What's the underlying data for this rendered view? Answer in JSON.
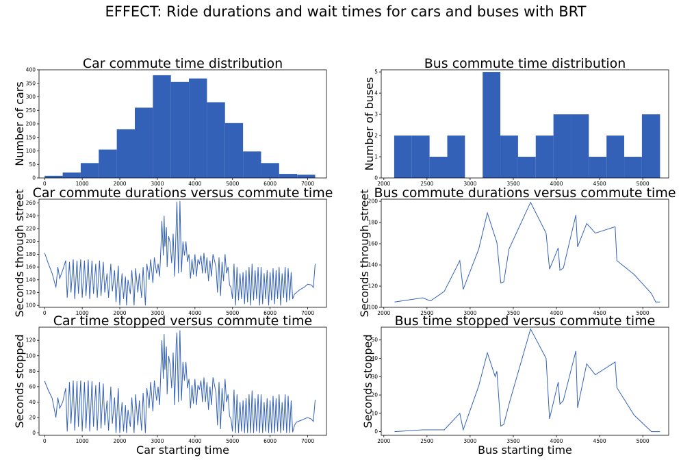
{
  "figure": {
    "title": "EFFECT: Ride durations and wait times for cars and buses with BRT",
    "colors": {
      "series": "#3361b8",
      "axis": "#000000"
    }
  },
  "chart_data": [
    {
      "id": "car-hist",
      "type": "bar",
      "title": "Car commute time distribution",
      "xlabel": "",
      "ylabel": "Number of cars",
      "xlim": [
        -150,
        7500
      ],
      "ylim": [
        0,
        400
      ],
      "xticks": [
        0,
        1000,
        2000,
        3000,
        4000,
        5000,
        6000,
        7000
      ],
      "yticks": [
        0,
        50,
        100,
        150,
        200,
        250,
        300,
        350,
        400
      ],
      "bin_edges": [
        0,
        480,
        960,
        1440,
        1920,
        2400,
        2880,
        3360,
        3840,
        4320,
        4800,
        5280,
        5760,
        6240,
        6720,
        7200
      ],
      "values": [
        8,
        20,
        55,
        105,
        180,
        260,
        380,
        355,
        368,
        280,
        203,
        98,
        55,
        15,
        12
      ]
    },
    {
      "id": "bus-hist",
      "type": "bar",
      "title": "Bus commute time distribution",
      "xlabel": "",
      "ylabel": "Number of buses",
      "xlim": [
        1970,
        5300
      ],
      "ylim": [
        0,
        5.1
      ],
      "xticks": [
        2000,
        2500,
        3000,
        3500,
        4000,
        4500,
        5000
      ],
      "yticks": [
        0,
        1,
        2,
        3,
        4,
        5
      ],
      "bin_edges": [
        2120,
        2325,
        2530,
        2735,
        2940,
        3145,
        3350,
        3555,
        3760,
        3965,
        4170,
        4375,
        4580,
        4785,
        4990,
        5200
      ],
      "values": [
        2,
        2,
        1,
        2,
        0,
        5,
        2,
        1,
        2,
        3,
        3,
        1,
        2,
        1,
        3
      ]
    },
    {
      "id": "car-duration",
      "type": "line",
      "title": "Car commute durations versus commute time",
      "xlabel": "",
      "ylabel": "Seconds through street",
      "xlim": [
        -150,
        7500
      ],
      "ylim": [
        97,
        266
      ],
      "xticks": [
        0,
        1000,
        2000,
        3000,
        4000,
        5000,
        6000,
        7000
      ],
      "yticks": [
        100,
        120,
        140,
        160,
        180,
        200,
        220,
        240,
        260
      ],
      "x": [
        0,
        100,
        200,
        300,
        350,
        400,
        480,
        560,
        600,
        660,
        700,
        760,
        800,
        860,
        900,
        960,
        1000,
        1060,
        1100,
        1160,
        1200,
        1260,
        1300,
        1360,
        1400,
        1460,
        1500,
        1560,
        1600,
        1660,
        1700,
        1760,
        1800,
        1860,
        1900,
        1960,
        2000,
        2060,
        2100,
        2150,
        2180,
        2220,
        2280,
        2320,
        2380,
        2420,
        2480,
        2520,
        2580,
        2620,
        2680,
        2720,
        2780,
        2820,
        2880,
        2920,
        2980,
        3020,
        3060,
        3100,
        3120,
        3160,
        3180,
        3200,
        3240,
        3260,
        3300,
        3340,
        3380,
        3420,
        3460,
        3500,
        3520,
        3560,
        3580,
        3600,
        3640,
        3680,
        3720,
        3760,
        3800,
        3840,
        3880,
        3920,
        3960,
        4000,
        4040,
        4080,
        4120,
        4160,
        4200,
        4240,
        4280,
        4320,
        4360,
        4400,
        4440,
        4480,
        4520,
        4560,
        4600,
        4640,
        4680,
        4720,
        4760,
        4800,
        4840,
        4880,
        4920,
        4960,
        5000,
        5040,
        5080,
        5120,
        5160,
        5200,
        5240,
        5280,
        5320,
        5360,
        5400,
        5440,
        5480,
        5520,
        5560,
        5600,
        5640,
        5680,
        5720,
        5760,
        5800,
        5840,
        5880,
        5920,
        5960,
        6000,
        6040,
        6080,
        6120,
        6160,
        6200,
        6240,
        6280,
        6320,
        6360,
        6400,
        6440,
        6480,
        6520,
        6560,
        6600,
        6650,
        6700,
        6800,
        6900,
        7000,
        7100,
        7150,
        7200
      ],
      "y": [
        182,
        165,
        150,
        128,
        160,
        142,
        155,
        170,
        112,
        168,
        120,
        172,
        110,
        170,
        118,
        172,
        112,
        170,
        115,
        172,
        110,
        170,
        118,
        165,
        112,
        170,
        115,
        168,
        120,
        150,
        112,
        165,
        122,
        155,
        105,
        162,
        100,
        150,
        110,
        145,
        100,
        140,
        118,
        155,
        100,
        158,
        120,
        150,
        112,
        160,
        100,
        165,
        140,
        172,
        135,
        175,
        150,
        165,
        145,
        198,
        232,
        178,
        240,
        192,
        222,
        160,
        208,
        198,
        166,
        212,
        145,
        225,
        262,
        150,
        200,
        263,
        152,
        200,
        178,
        200,
        168,
        180,
        142,
        172,
        148,
        180,
        145,
        172,
        165,
        178,
        150,
        182,
        150,
        175,
        138,
        170,
        145,
        180,
        170,
        160,
        120,
        175,
        115,
        168,
        138,
        180,
        150,
        160,
        132,
        128,
        110,
        165,
        100,
        160,
        108,
        150,
        110,
        152,
        102,
        155,
        105,
        160,
        100,
        165,
        108,
        155,
        110,
        160,
        100,
        160,
        102,
        150,
        110,
        155,
        100,
        152,
        108,
        158,
        102,
        155,
        110,
        160,
        100,
        150,
        112,
        160,
        105,
        158,
        108,
        152,
        110,
        118,
        120,
        125,
        128,
        133,
        132,
        128,
        165
      ]
    },
    {
      "id": "bus-duration",
      "type": "line",
      "title": "Bus commute durations versus commute time",
      "xlabel": "",
      "ylabel": "Seconds through street",
      "xlim": [
        1970,
        5300
      ],
      "ylim": [
        100,
        202
      ],
      "xticks": [
        2000,
        2500,
        3000,
        3500,
        4000,
        4500,
        5000
      ],
      "yticks": [
        100,
        120,
        140,
        160,
        180,
        200
      ],
      "x": [
        2125,
        2450,
        2540,
        2700,
        2880,
        2920,
        3100,
        3200,
        3290,
        3310,
        3355,
        3390,
        3450,
        3700,
        3880,
        3920,
        4020,
        4040,
        4080,
        4225,
        4245,
        4350,
        4450,
        4680,
        4700,
        4900,
        5100,
        5150,
        5200
      ],
      "y": [
        105,
        109,
        106,
        115,
        144,
        117,
        155,
        189,
        166,
        161,
        123,
        124,
        155,
        199,
        170,
        136,
        156,
        135,
        137,
        187,
        157,
        179,
        170,
        176,
        144,
        131,
        113,
        105,
        105
      ]
    },
    {
      "id": "car-stopped",
      "type": "line",
      "title": "Car time stopped versus commute time",
      "xlabel": "Car starting time",
      "ylabel": "Seconds stopped",
      "xlim": [
        -150,
        7500
      ],
      "ylim": [
        -3,
        137
      ],
      "xticks": [
        0,
        1000,
        2000,
        3000,
        4000,
        5000,
        6000,
        7000
      ],
      "yticks": [
        0,
        20,
        40,
        60,
        80,
        100,
        120
      ],
      "x": [
        0,
        100,
        200,
        300,
        350,
        400,
        480,
        560,
        600,
        660,
        700,
        760,
        800,
        860,
        900,
        960,
        1000,
        1060,
        1100,
        1160,
        1200,
        1260,
        1300,
        1360,
        1400,
        1460,
        1500,
        1560,
        1600,
        1660,
        1700,
        1760,
        1800,
        1860,
        1900,
        1960,
        2000,
        2060,
        2100,
        2150,
        2180,
        2220,
        2280,
        2320,
        2380,
        2420,
        2480,
        2520,
        2580,
        2620,
        2680,
        2720,
        2780,
        2820,
        2880,
        2920,
        2980,
        3020,
        3060,
        3100,
        3120,
        3160,
        3180,
        3200,
        3240,
        3260,
        3300,
        3340,
        3380,
        3420,
        3460,
        3500,
        3520,
        3560,
        3580,
        3600,
        3640,
        3680,
        3720,
        3760,
        3800,
        3840,
        3880,
        3920,
        3960,
        4000,
        4040,
        4080,
        4120,
        4160,
        4200,
        4240,
        4280,
        4320,
        4360,
        4400,
        4440,
        4480,
        4520,
        4560,
        4600,
        4640,
        4680,
        4720,
        4760,
        4800,
        4840,
        4880,
        4920,
        4960,
        5000,
        5040,
        5080,
        5120,
        5160,
        5200,
        5240,
        5280,
        5320,
        5360,
        5400,
        5440,
        5480,
        5520,
        5560,
        5600,
        5640,
        5680,
        5720,
        5760,
        5800,
        5840,
        5880,
        5920,
        5960,
        6000,
        6040,
        6080,
        6120,
        6160,
        6200,
        6240,
        6280,
        6320,
        6360,
        6400,
        6440,
        6480,
        6520,
        6560,
        6600,
        6650,
        6700,
        6800,
        6900,
        7000,
        7100,
        7150,
        7200
      ],
      "y": [
        67,
        55,
        45,
        20,
        46,
        32,
        40,
        58,
        2,
        66,
        12,
        68,
        3,
        67,
        8,
        68,
        2,
        66,
        6,
        68,
        2,
        67,
        8,
        62,
        3,
        66,
        6,
        64,
        10,
        42,
        3,
        60,
        12,
        46,
        0,
        58,
        0,
        40,
        2,
        36,
        0,
        30,
        8,
        46,
        0,
        50,
        10,
        42,
        3,
        52,
        0,
        58,
        32,
        66,
        28,
        68,
        42,
        60,
        36,
        90,
        120,
        70,
        128,
        82,
        112,
        50,
        100,
        88,
        58,
        104,
        36,
        116,
        130,
        40,
        92,
        133,
        42,
        92,
        68,
        92,
        58,
        70,
        32,
        62,
        38,
        70,
        36,
        62,
        56,
        68,
        40,
        72,
        40,
        66,
        30,
        60,
        36,
        72,
        62,
        52,
        10,
        66,
        5,
        58,
        28,
        70,
        40,
        50,
        22,
        18,
        2,
        56,
        0,
        50,
        0,
        40,
        2,
        42,
        0,
        45,
        0,
        50,
        0,
        55,
        0,
        45,
        2,
        50,
        0,
        50,
        0,
        40,
        2,
        45,
        0,
        42,
        0,
        48,
        0,
        45,
        2,
        50,
        0,
        40,
        3,
        50,
        0,
        48,
        0,
        42,
        1,
        10,
        14,
        16,
        18,
        20,
        18,
        15,
        43
      ]
    },
    {
      "id": "bus-stopped",
      "type": "line",
      "title": "Bus time stopped versus commute time",
      "xlabel": "Bus starting time",
      "ylabel": "Seconds stopped",
      "xlim": [
        1970,
        5300
      ],
      "ylim": [
        -2,
        57
      ],
      "xticks": [
        2000,
        2500,
        3000,
        3500,
        4000,
        4500,
        5000
      ],
      "yticks": [
        0,
        10,
        20,
        30,
        40,
        50
      ],
      "x": [
        2125,
        2450,
        2540,
        2700,
        2880,
        2920,
        3100,
        3200,
        3290,
        3310,
        3355,
        3390,
        3450,
        3700,
        3880,
        3920,
        4020,
        4040,
        4080,
        4225,
        4245,
        4350,
        4450,
        4680,
        4700,
        4900,
        5100,
        5150,
        5200
      ],
      "y": [
        0,
        1,
        1,
        1,
        10,
        1,
        25,
        43,
        30,
        33,
        3,
        4,
        15,
        56,
        40,
        7,
        27,
        15,
        17,
        44,
        13,
        37,
        31,
        38,
        24,
        9,
        0,
        0,
        0
      ]
    }
  ]
}
